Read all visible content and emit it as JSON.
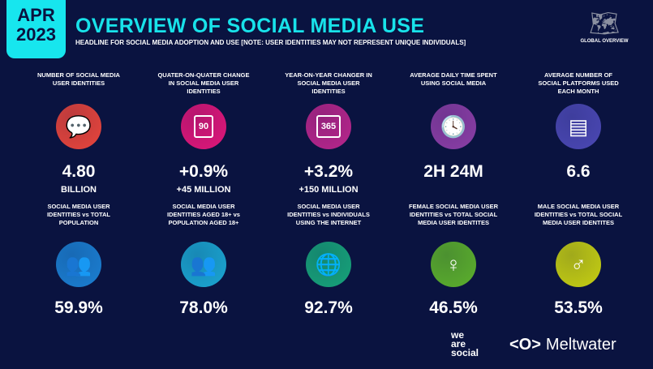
{
  "header": {
    "date_month": "APR",
    "date_year": "2023",
    "title": "OVERVIEW OF SOCIAL MEDIA USE",
    "subtitle": "HEADLINE FOR SOCIAL MEDIA ADOPTION AND USE [NOTE: USER IDENTITIES MAY NOT REPRESENT UNIQUE INDIVIDUALS]",
    "badge": "GLOBAL OVERVIEW"
  },
  "row1": [
    {
      "label": "NUMBER OF SOCIAL MEDIA USER IDENTITIES",
      "value": "4.80",
      "sub": "BILLION",
      "icon": "chat-bubbles-icon",
      "color": "#e8453c"
    },
    {
      "label": "QUATER-ON-QUATER CHANGE IN SOCIAL MEDIA USER IDENTITIES",
      "value": "+0.9%",
      "sub": "+45 MILLION",
      "icon": "calendar-90-days-icon",
      "color": "#e0177a",
      "icon_text": "90"
    },
    {
      "label": "YEAR-ON-YEAR CHANGER IN SOCIAL MEDIA USER IDENTITIES",
      "value": "+3.2%",
      "sub": "+150 MILLION",
      "icon": "calendar-365-icon",
      "color": "#b8268c",
      "icon_text": "365"
    },
    {
      "label": "AVERAGE DAILY TIME SPENT USING SOCIAL MEDIA",
      "value": "2H 24M",
      "sub": "",
      "icon": "clock-icon",
      "color": "#8b3ea6"
    },
    {
      "label": "AVERAGE NUMBER OF SOCIAL PLATFORMS USED EACH MONTH",
      "value": "6.6",
      "sub": "",
      "icon": "platforms-icon",
      "color": "#4b48b4"
    }
  ],
  "row2": [
    {
      "label": "SOCIAL MEDIA USER IDENTITIES vs TOTAL POPULATION",
      "value": "59.9%",
      "icon": "people-group-icon",
      "color": "#1b7fd2"
    },
    {
      "label": "SOCIAL MEDIA USER IDENTITIES AGED 18+ vs POPULATION AGED 18+",
      "value": "78.0%",
      "icon": "adults-icon",
      "color": "#1ba6d2"
    },
    {
      "label": "SOCIAL MEDIA USER IDENTITIES vs INDIVIDUALS USING THE INTERNET",
      "value": "92.7%",
      "icon": "globe-icon",
      "color": "#17a37a"
    },
    {
      "label": "FEMALE SOCIAL MEDIA USER IDENTITIES vs TOTAL SOCIAL MEDIA USER IDENTITES",
      "value": "46.5%",
      "icon": "female-icon",
      "color": "#5cb02c"
    },
    {
      "label": "MALE SOCIAL MEDIA USER IDENTITIES vs TOTAL SOCIAL MEDIA USER IDENTITES",
      "value": "53.5%",
      "icon": "male-icon",
      "color": "#c6cf12"
    }
  ],
  "footer": {
    "brand1": "we are social",
    "brand2": "Meltwater"
  }
}
